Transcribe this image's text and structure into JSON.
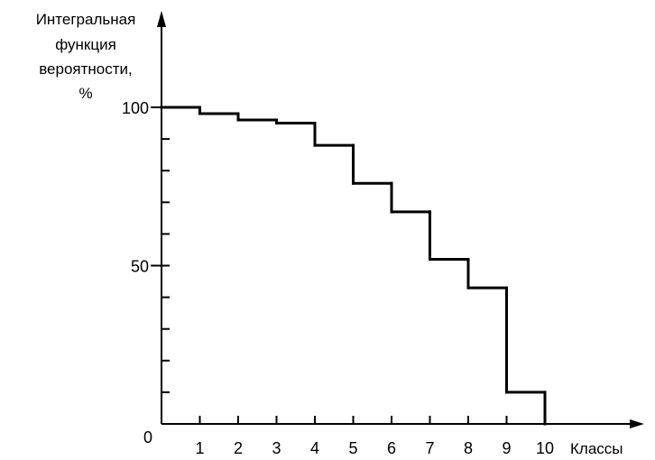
{
  "chart_data": {
    "type": "line",
    "step": true,
    "title": "",
    "ylabel_lines": [
      "Интегральная",
      "функция",
      "вероятности,",
      "%"
    ],
    "xlabel": "Классы",
    "x_ticks": [
      "1",
      "2",
      "3",
      "4",
      "5",
      "6",
      "7",
      "8",
      "9",
      "10"
    ],
    "y_tick_labels": [
      "0",
      "50",
      "100"
    ],
    "xlim": [
      0,
      10.5
    ],
    "ylim": [
      0,
      100
    ],
    "y_minor_step": 10,
    "grid": false,
    "legend": "none",
    "line_color": "#000000",
    "series": [
      {
        "steps": [
          {
            "from": 0,
            "to": 1,
            "value": 100
          },
          {
            "from": 1,
            "to": 2,
            "value": 98
          },
          {
            "from": 2,
            "to": 3,
            "value": 96
          },
          {
            "from": 3,
            "to": 4,
            "value": 95
          },
          {
            "from": 4,
            "to": 5,
            "value": 88
          },
          {
            "from": 5,
            "to": 6,
            "value": 76
          },
          {
            "from": 6,
            "to": 7,
            "value": 67
          },
          {
            "from": 7,
            "to": 8,
            "value": 52
          },
          {
            "from": 8,
            "to": 9,
            "value": 43
          },
          {
            "from": 9,
            "to": 10,
            "value": 10
          }
        ]
      }
    ]
  }
}
